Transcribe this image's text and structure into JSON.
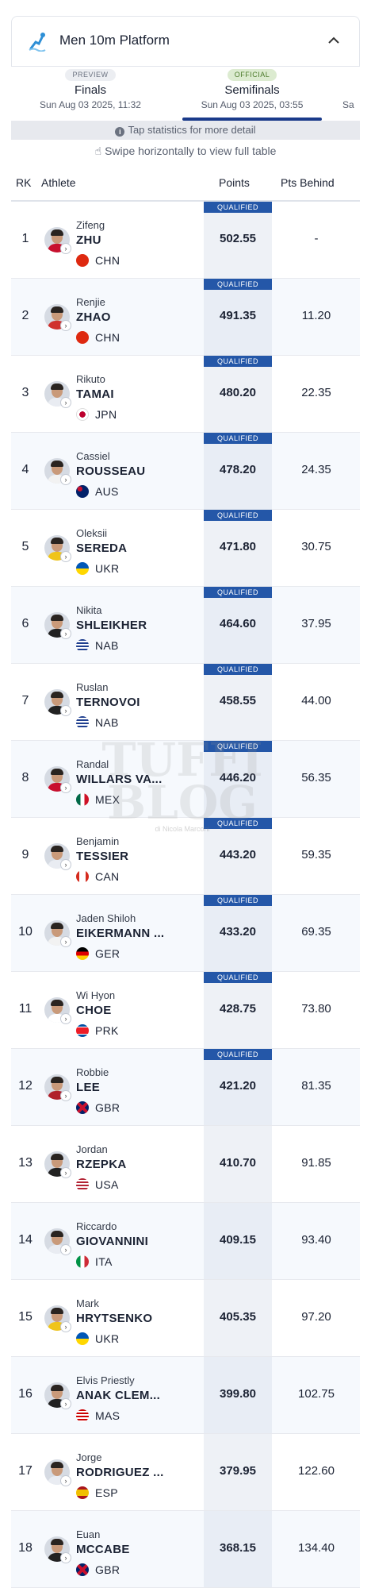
{
  "event": {
    "title": "Men 10m Platform",
    "icon": "diver-icon",
    "collapse_icon": "chevron-up-icon"
  },
  "tabs": [
    {
      "badge": "PREVIEW",
      "name": "Finals",
      "date": "Sun Aug 03 2025, 11:32"
    },
    {
      "badge": "OFFICIAL",
      "name": "Semifinals",
      "date": "Sun Aug 03 2025, 03:55"
    },
    {
      "badge": "",
      "name": "",
      "date": "Sa"
    }
  ],
  "hint": "Tap statistics for more detail",
  "swipe_hint": "Swipe horizontally to view full table",
  "columns": {
    "rk": "RK",
    "athlete": "Athlete",
    "points": "Points",
    "behind": "Pts Behind"
  },
  "qualified_label": "QUALIFIED",
  "watermark": {
    "line1": "TUFFI",
    "line2": "BLOG",
    "sub": "di Nicola Marconi"
  },
  "colors": {
    "accent": "#2457a8",
    "tab_underline": "#1a3a8a",
    "official_badge": "#dcebd0"
  },
  "rows": [
    {
      "rk": "1",
      "first": "Zifeng",
      "last": "ZHU",
      "country": "CHN",
      "points": "502.55",
      "behind": "-",
      "qualified": true
    },
    {
      "rk": "2",
      "first": "Renjie",
      "last": "ZHAO",
      "country": "CHN",
      "points": "491.35",
      "behind": "11.20",
      "qualified": true
    },
    {
      "rk": "3",
      "first": "Rikuto",
      "last": "TAMAI",
      "country": "JPN",
      "points": "480.20",
      "behind": "22.35",
      "qualified": true
    },
    {
      "rk": "4",
      "first": "Cassiel",
      "last": "ROUSSEAU",
      "country": "AUS",
      "points": "478.20",
      "behind": "24.35",
      "qualified": true
    },
    {
      "rk": "5",
      "first": "Oleksii",
      "last": "SEREDA",
      "country": "UKR",
      "points": "471.80",
      "behind": "30.75",
      "qualified": true
    },
    {
      "rk": "6",
      "first": "Nikita",
      "last": "SHLEIKHER",
      "country": "NAB",
      "points": "464.60",
      "behind": "37.95",
      "qualified": true
    },
    {
      "rk": "7",
      "first": "Ruslan",
      "last": "TERNOVOI",
      "country": "NAB",
      "points": "458.55",
      "behind": "44.00",
      "qualified": true
    },
    {
      "rk": "8",
      "first": "Randal",
      "last": "WILLARS VA...",
      "country": "MEX",
      "points": "446.20",
      "behind": "56.35",
      "qualified": true
    },
    {
      "rk": "9",
      "first": "Benjamin",
      "last": "TESSIER",
      "country": "CAN",
      "points": "443.20",
      "behind": "59.35",
      "qualified": true
    },
    {
      "rk": "10",
      "first": "Jaden Shiloh",
      "last": "EIKERMANN ...",
      "country": "GER",
      "points": "433.20",
      "behind": "69.35",
      "qualified": true
    },
    {
      "rk": "11",
      "first": "Wi Hyon",
      "last": "CHOE",
      "country": "PRK",
      "points": "428.75",
      "behind": "73.80",
      "qualified": true
    },
    {
      "rk": "12",
      "first": "Robbie",
      "last": "LEE",
      "country": "GBR",
      "points": "421.20",
      "behind": "81.35",
      "qualified": true
    },
    {
      "rk": "13",
      "first": "Jordan",
      "last": "RZEPKA",
      "country": "USA",
      "points": "410.70",
      "behind": "91.85",
      "qualified": false
    },
    {
      "rk": "14",
      "first": "Riccardo",
      "last": "GIOVANNINI",
      "country": "ITA",
      "points": "409.15",
      "behind": "93.40",
      "qualified": false
    },
    {
      "rk": "15",
      "first": "Mark",
      "last": "HRYTSENKO",
      "country": "UKR",
      "points": "405.35",
      "behind": "97.20",
      "qualified": false
    },
    {
      "rk": "16",
      "first": "Elvis Priestly",
      "last": "ANAK CLEM...",
      "country": "MAS",
      "points": "399.80",
      "behind": "102.75",
      "qualified": false
    },
    {
      "rk": "17",
      "first": "Jorge",
      "last": "RODRIGUEZ ...",
      "country": "ESP",
      "points": "379.95",
      "behind": "122.60",
      "qualified": false
    },
    {
      "rk": "18",
      "first": "Euan",
      "last": "MCCABE",
      "country": "GBR",
      "points": "368.15",
      "behind": "134.40",
      "qualified": false
    }
  ]
}
